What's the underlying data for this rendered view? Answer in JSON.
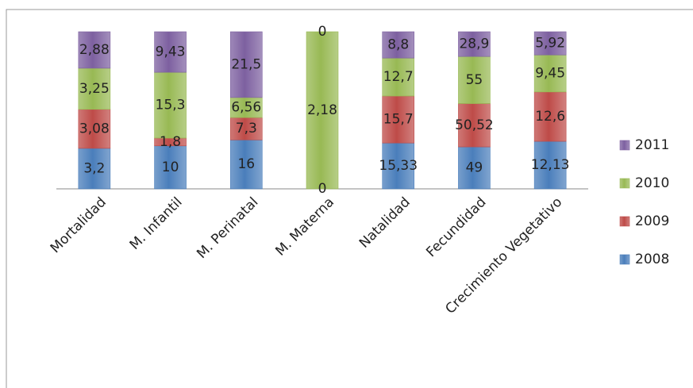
{
  "chart_data": {
    "type": "bar",
    "stacking": "percent",
    "categories": [
      "Mortalidad",
      "M. Infantil",
      "M. Perinatal",
      "M. Materna",
      "Natalidad",
      "Fecundidad",
      "Crecimiento Vegetativo"
    ],
    "series": [
      {
        "name": "2008",
        "color": "#4a7ebb",
        "values": [
          3.2,
          10,
          16,
          0,
          15.33,
          49,
          12.13
        ],
        "value_labels": [
          "3,2",
          "10",
          "16",
          "0",
          "15,33",
          "49",
          "12,13"
        ]
      },
      {
        "name": "2009",
        "color": "#be4b48",
        "values": [
          3.08,
          1.8,
          7.3,
          0,
          15.7,
          50.52,
          12.6
        ],
        "value_labels": [
          "3,08",
          "1,8",
          "7,3",
          null,
          "15,7",
          "50,52",
          "12,6"
        ]
      },
      {
        "name": "2010",
        "color": "#98b954",
        "values": [
          3.25,
          15.3,
          6.56,
          2.18,
          12.7,
          55,
          9.45
        ],
        "value_labels": [
          "3,25",
          "15,3",
          "6,56",
          "2,18",
          "12,7",
          "55",
          "9,45"
        ]
      },
      {
        "name": "2011",
        "color": "#7d60a0",
        "values": [
          2.88,
          9.43,
          21.5,
          0,
          8.8,
          28.9,
          5.92
        ],
        "value_labels": [
          "2,88",
          "9,43",
          "21,5",
          "0",
          "8,8",
          "28,9",
          "5,92"
        ]
      }
    ],
    "legend": "right"
  }
}
